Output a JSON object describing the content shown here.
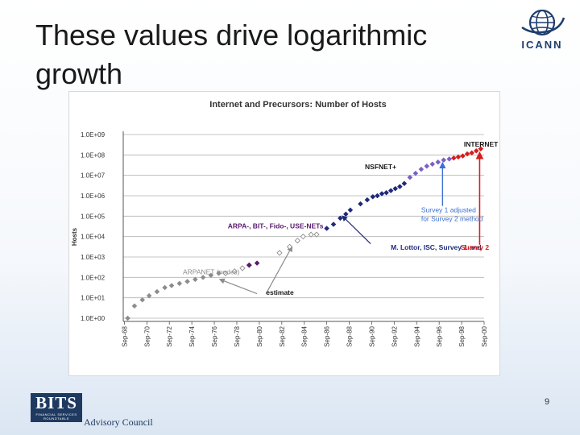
{
  "slide": {
    "title": "These values drive logarithmic growth",
    "page_number": "9",
    "footer_logo_text": "BITS",
    "footer_logo_subtext": "FINANCIAL SERVICES ROUNDTABLE",
    "footer_caption": "Advisory Council",
    "icann_logo_text": "ICANN",
    "icann_logo_icon": "globe-icon"
  },
  "chart_data": {
    "type": "scatter",
    "title": "Internet and Precursors: Number of Hosts",
    "ylabel": "Hosts",
    "xlabel": "",
    "y_scale": "log",
    "ylim_exponent": [
      0,
      9
    ],
    "y_tick_labels": [
      "1.0E+00",
      "1.0E+01",
      "1.0E+02",
      "1.0E+03",
      "1.0E+04",
      "1.0E+05",
      "1.0E+06",
      "1.0E+07",
      "1.0E+08",
      "1.0E+09"
    ],
    "xlim": [
      1968.6,
      2000.7
    ],
    "x_tick_labels": [
      "Sep-68",
      "Sep-70",
      "Sep-72",
      "Sep-74",
      "Sep-76",
      "Sep-78",
      "Sep-80",
      "Sep-82",
      "Sep-84",
      "Sep-86",
      "Sep-88",
      "Sep-90",
      "Sep-92",
      "Sep-94",
      "Sep-96",
      "Sep-98",
      "Sep-00"
    ],
    "grid": "horizontal",
    "series": [
      {
        "name": "ARPANET (nodes)",
        "color": "#8c8c8c",
        "marker": "filled-diamond",
        "points": [
          [
            1969.0,
            0
          ],
          [
            1969.6,
            0.6
          ],
          [
            1970.3,
            0.9
          ],
          [
            1970.9,
            1.1
          ],
          [
            1971.6,
            1.3
          ],
          [
            1972.3,
            1.5
          ],
          [
            1972.9,
            1.6
          ],
          [
            1973.6,
            1.7
          ],
          [
            1974.3,
            1.8
          ],
          [
            1975.0,
            1.9
          ],
          [
            1975.7,
            2.0
          ],
          [
            1976.4,
            2.1
          ],
          [
            1977.1,
            2.2
          ]
        ]
      },
      {
        "name": "estimate",
        "color": "#8c8c8c",
        "marker": "open-diamond",
        "points": [
          [
            1977.7,
            2.2
          ],
          [
            1978.5,
            2.3
          ],
          [
            1979.2,
            2.45
          ],
          [
            1979.8,
            2.6
          ],
          [
            1982.5,
            3.2
          ],
          [
            1983.4,
            3.5
          ],
          [
            1984.1,
            3.8
          ],
          [
            1984.6,
            4.0
          ],
          [
            1985.3,
            4.1
          ],
          [
            1985.8,
            4.1
          ]
        ]
      },
      {
        "name": "ARPA-, BIT-, Fido-, USE-NETs",
        "color": "#5a1a6e",
        "marker": "filled-diamond",
        "points": [
          [
            1979.8,
            2.6
          ],
          [
            1980.5,
            2.7
          ]
        ]
      },
      {
        "name": "M. Lottor, ISC, Survey 1",
        "color": "#1e2a78",
        "marker": "filled-diamond",
        "points": [
          [
            1986.7,
            4.4
          ],
          [
            1987.3,
            4.6
          ],
          [
            1987.9,
            4.9
          ],
          [
            1988.4,
            5.1
          ],
          [
            1988.8,
            5.3
          ],
          [
            1989.7,
            5.6
          ],
          [
            1990.3,
            5.8
          ],
          [
            1990.8,
            5.95
          ],
          [
            1991.2,
            6.0
          ],
          [
            1991.6,
            6.1
          ],
          [
            1992.0,
            6.15
          ],
          [
            1992.4,
            6.25
          ],
          [
            1992.8,
            6.35
          ],
          [
            1993.2,
            6.45
          ],
          [
            1993.6,
            6.6
          ]
        ]
      },
      {
        "name": "Survey 1 adjusted for Survey 2 method",
        "color": "#7b5fc7",
        "marker": "filled-diamond",
        "points": [
          [
            1994.1,
            6.9
          ],
          [
            1994.6,
            7.1
          ],
          [
            1995.1,
            7.3
          ],
          [
            1995.6,
            7.45
          ],
          [
            1996.1,
            7.55
          ],
          [
            1996.6,
            7.65
          ],
          [
            1997.1,
            7.75
          ],
          [
            1997.6,
            7.8
          ]
        ]
      },
      {
        "name": "Survey 2",
        "color": "#d61c1c",
        "marker": "filled-diamond",
        "points": [
          [
            1998.0,
            7.85
          ],
          [
            1998.4,
            7.9
          ],
          [
            1998.8,
            7.95
          ],
          [
            1999.2,
            8.05
          ],
          [
            1999.6,
            8.1
          ],
          [
            2000.0,
            8.2
          ],
          [
            2000.4,
            8.3
          ]
        ]
      }
    ],
    "annotations": [
      {
        "text": "INTERNET",
        "color": "#1a1a1a",
        "bold": true,
        "x": 1998.9,
        "y": 8.4
      },
      {
        "text": "NSFNET+",
        "color": "#1a1a1a",
        "bold": true,
        "x": 1990.1,
        "y": 7.3
      },
      {
        "text": "ARPA-, BIT-, Fido-, USE-NETs",
        "color": "#5a1a6e",
        "bold": true,
        "x": 1977.9,
        "y": 4.4
      },
      {
        "text": "ARPANET (nodes)",
        "color": "#8c8c8c",
        "bold": false,
        "x": 1973.9,
        "y": 2.15
      },
      {
        "text": "estimate",
        "color": "#1a1a1a",
        "bold": true,
        "x": 1981.3,
        "y": 1.15
      },
      {
        "text": "Survey 1 adjusted",
        "color": "#3b6fd4",
        "bold": false,
        "x": 1995.1,
        "y": 5.2
      },
      {
        "text": "for Survey 2 method",
        "color": "#3b6fd4",
        "bold": false,
        "x": 1995.1,
        "y": 4.75
      },
      {
        "text": "M. Lottor, ISC, Survey 1 and ",
        "color": "#1e2a78",
        "bold": true,
        "x": 1992.4,
        "y": 3.35
      },
      {
        "text": "Survey 2",
        "color": "#d61c1c",
        "bold": true,
        "x": 1998.6,
        "y": 3.35
      }
    ]
  }
}
